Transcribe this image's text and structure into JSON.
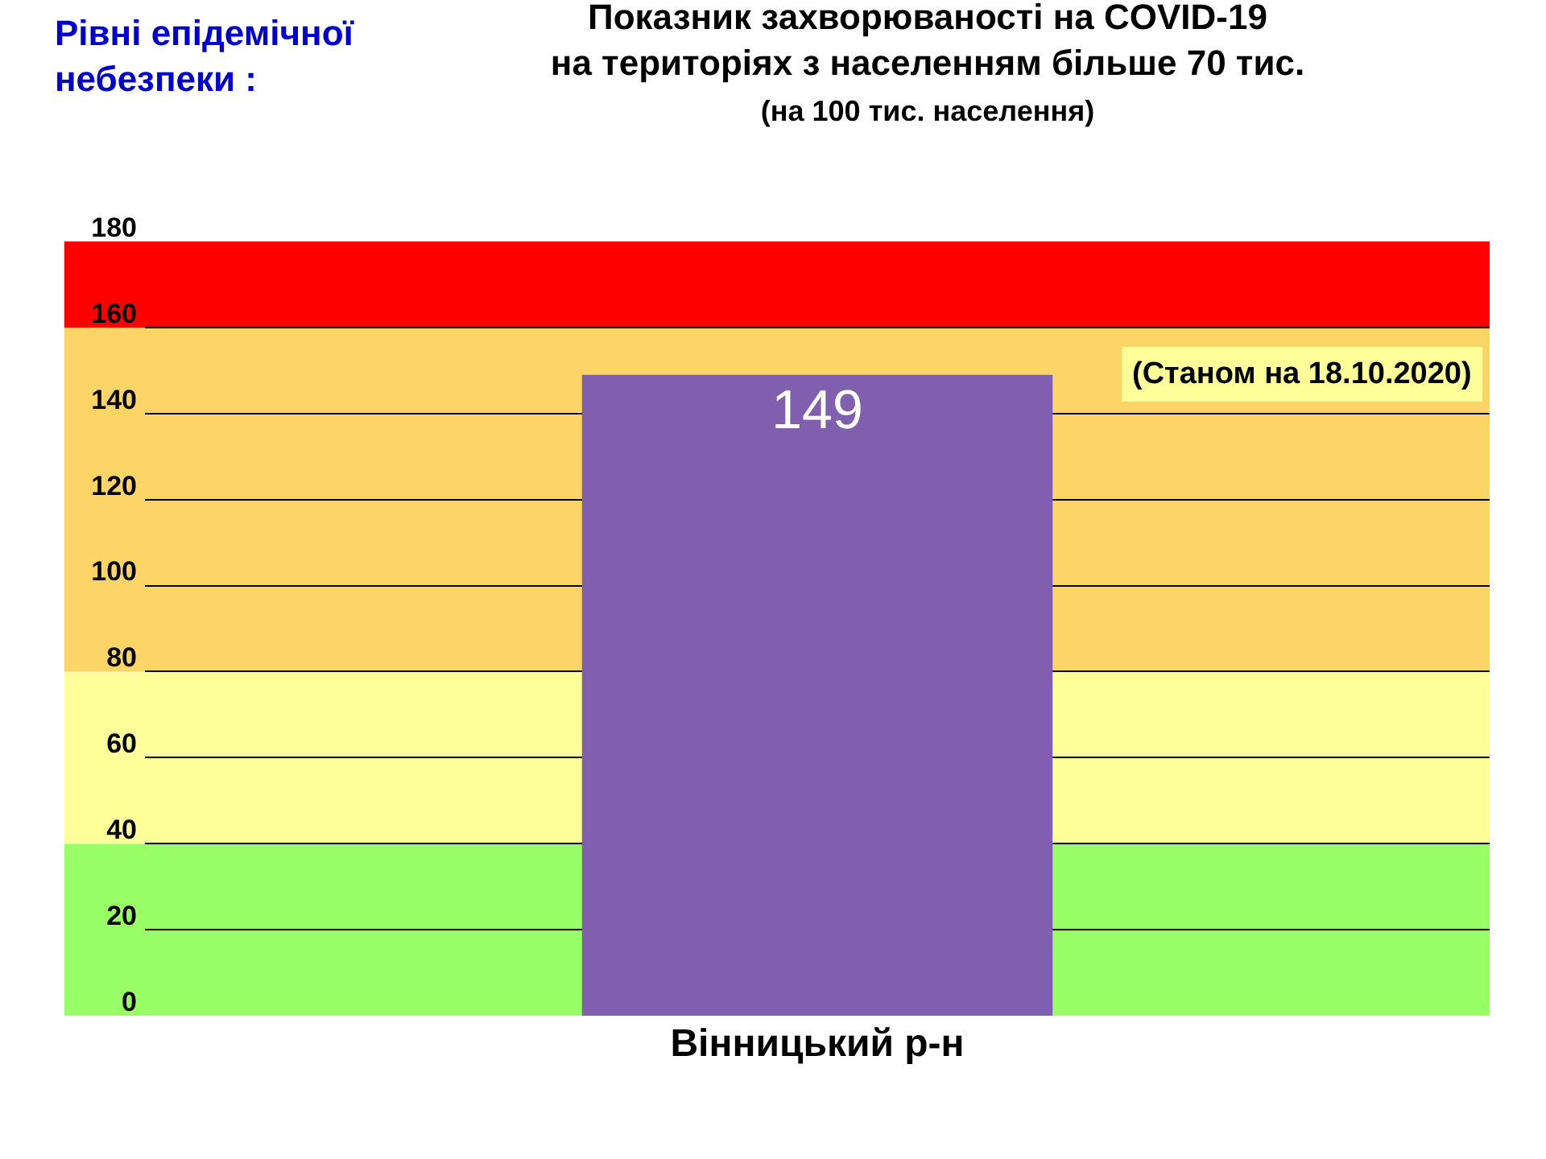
{
  "chart_data": {
    "type": "bar",
    "title": "Показник захворюваності на COVID-19\nна територіях з населенням більше 70 тис.",
    "subtitle": "(на 100 тис. населення)",
    "categories": [
      "Вінницький р-н"
    ],
    "values": [
      149
    ],
    "color": "#7f5fae",
    "data_labels": true,
    "ylim": [
      0,
      180
    ],
    "yticks": [
      0,
      20,
      40,
      60,
      80,
      100,
      120,
      140,
      160,
      180
    ],
    "grid": "y",
    "bands": [
      {
        "axis": "y",
        "from": 0,
        "to": 40,
        "color": "#99ff66"
      },
      {
        "axis": "y",
        "from": 40,
        "to": 80,
        "color": "#ffff99"
      },
      {
        "axis": "y",
        "from": 80,
        "to": 160,
        "color": "#fdd566"
      },
      {
        "axis": "y",
        "from": 160,
        "to": 180,
        "color": "#ff0000"
      }
    ],
    "annotations": [
      "Рівні епідемічної небезпеки :",
      "(Станом на 18.10.2020)"
    ]
  }
}
